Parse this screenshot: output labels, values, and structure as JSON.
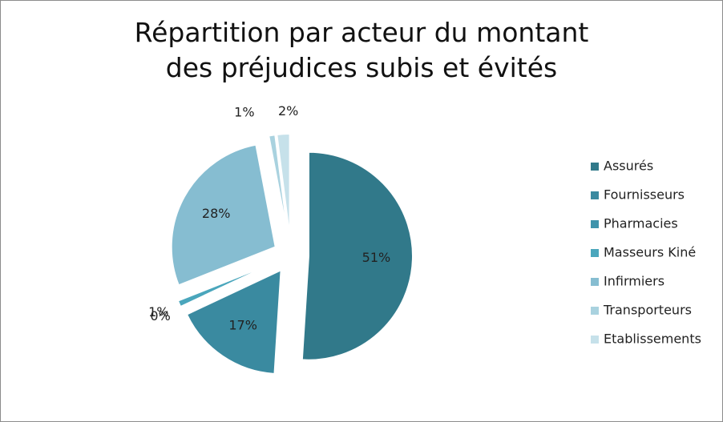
{
  "chart_data": {
    "type": "pie",
    "title": "Répartition par acteur du montant des préjudices subis et évités",
    "categories": [
      "Assurés",
      "Fournisseurs",
      "Pharmacies",
      "Masseurs Kiné",
      "Infirmiers",
      "Transporteurs",
      "Etablissements"
    ],
    "values": [
      51,
      17,
      0,
      1,
      28,
      1,
      2
    ],
    "value_labels": [
      "51%",
      "17%",
      "0%",
      "1%",
      "28%",
      "1%",
      "2%"
    ],
    "colors": [
      "#31798a",
      "#3a8aa0",
      "#3e93ab",
      "#4aa6bc",
      "#86bdd1",
      "#a9d2df",
      "#c6e1ea"
    ],
    "legend": "right"
  }
}
